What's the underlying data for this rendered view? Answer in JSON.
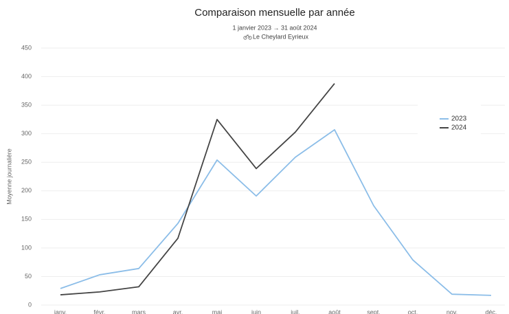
{
  "chart_data": {
    "type": "line",
    "title": "Comparaison mensuelle par année",
    "subtitle": "1 janvier 2023 → 31 août 2024",
    "location": "Le Cheylard Eyrieux",
    "y_label": "Moyenne journalière",
    "categories": [
      "janv.",
      "févr.",
      "mars",
      "avr.",
      "mai",
      "juin",
      "juil.",
      "août",
      "sept.",
      "oct.",
      "nov.",
      "déc."
    ],
    "series": [
      {
        "name": "2023",
        "color": "#8bbde8",
        "values": [
          29,
          53,
          64,
          143,
          254,
          191,
          259,
          307,
          174,
          79,
          19,
          17
        ]
      },
      {
        "name": "2024",
        "color": "#444444",
        "values": [
          18,
          23,
          32,
          117,
          325,
          239,
          303,
          388,
          null,
          null,
          null,
          null
        ]
      }
    ],
    "ylim": [
      0,
      450
    ],
    "yticks": [
      0,
      50,
      100,
      150,
      200,
      250,
      300,
      350,
      400,
      450
    ],
    "grid": true,
    "legend": "right"
  }
}
